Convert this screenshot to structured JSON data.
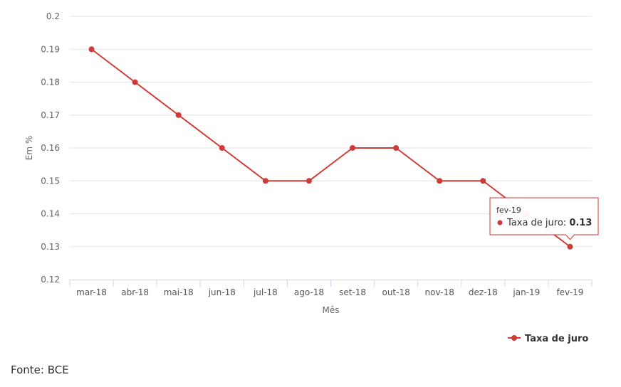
{
  "chart_data": {
    "type": "line",
    "categories": [
      "mar-18",
      "abr-18",
      "mai-18",
      "jun-18",
      "jul-18",
      "ago-18",
      "set-18",
      "out-18",
      "nov-18",
      "dez-18",
      "jan-19",
      "fev-19"
    ],
    "series": [
      {
        "name": "Taxa de juro",
        "values": [
          0.19,
          0.18,
          0.17,
          0.16,
          0.15,
          0.15,
          0.16,
          0.16,
          0.15,
          0.15,
          0.14,
          0.13
        ],
        "color": "#d13a35"
      }
    ],
    "xlabel": "Mês",
    "ylabel": "Em %",
    "ylim": [
      0.12,
      0.2
    ],
    "yticks": [
      "0.2",
      "0.19",
      "0.18",
      "0.17",
      "0.16",
      "0.15",
      "0.14",
      "0.13",
      "0.12"
    ],
    "grid": true,
    "legend": "bottom-right",
    "tooltip": {
      "category": "fev-19",
      "series": "Taxa de juro",
      "value_text": "0.13"
    }
  },
  "source_text": "Fonte: BCE"
}
